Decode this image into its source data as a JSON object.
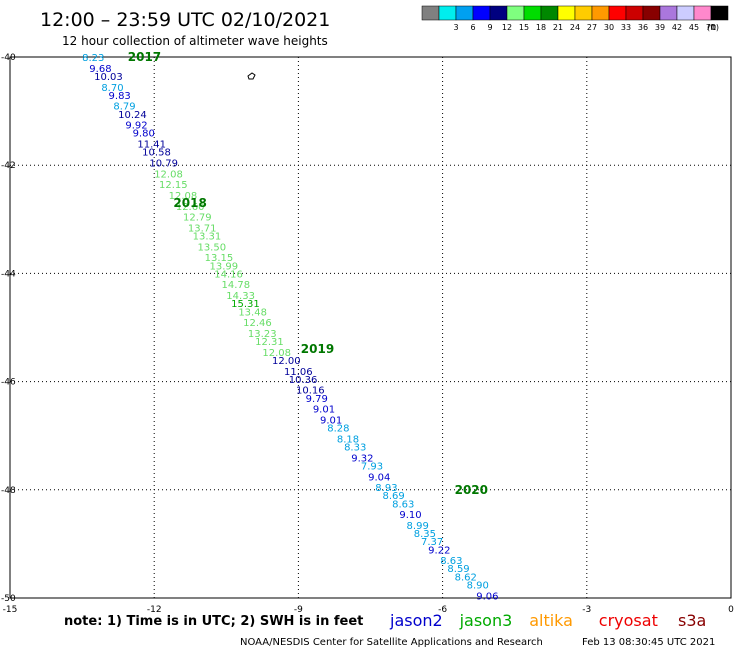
{
  "header": {
    "title": "12:00 – 23:59 UTC 02/10/2021",
    "subtitle": "12 hour collection of altimeter wave heights"
  },
  "legend": {
    "swatches": [
      {
        "color": "#808080",
        "label": ""
      },
      {
        "color": "#00eeee",
        "label": "3"
      },
      {
        "color": "#00a0f0",
        "label": "6"
      },
      {
        "color": "#0000ff",
        "label": "9"
      },
      {
        "color": "#000080",
        "label": "12"
      },
      {
        "color": "#7fff7f",
        "label": "15"
      },
      {
        "color": "#00dd00",
        "label": "18"
      },
      {
        "color": "#008800",
        "label": "21"
      },
      {
        "color": "#ffff00",
        "label": "24"
      },
      {
        "color": "#ffcc00",
        "label": "27"
      },
      {
        "color": "#ff9900",
        "label": "30"
      },
      {
        "color": "#ff0000",
        "label": "33"
      },
      {
        "color": "#cc0000",
        "label": "36"
      },
      {
        "color": "#880000",
        "label": "39"
      },
      {
        "color": "#aa77dd",
        "label": "42"
      },
      {
        "color": "#ccccff",
        "label": "45"
      },
      {
        "color": "#ff88cc",
        "label": "70"
      },
      {
        "color": "#000000",
        "label": ""
      }
    ],
    "unit_label": "(ft)"
  },
  "map": {
    "lon_labels": [
      "-15",
      "-12",
      "-9",
      "-6",
      "-3",
      "0"
    ],
    "lat_labels": [
      "-40",
      "-42",
      "-44",
      "-46",
      "-48",
      "-50"
    ],
    "time_marks": [
      {
        "label": "2017",
        "lon": -12.55,
        "lat": -40.0
      },
      {
        "label": "2018",
        "lon": -11.6,
        "lat": -42.7
      },
      {
        "label": "2019",
        "lon": -8.95,
        "lat": -45.4
      },
      {
        "label": "2020",
        "lon": -5.75,
        "lat": -48.0
      }
    ],
    "observations": [
      {
        "value": "8.23",
        "lon": -13.5,
        "lat": -40.0,
        "color": "#00a0e0"
      },
      {
        "value": "9.68",
        "lon": -13.35,
        "lat": -40.2,
        "color": "#0000cc"
      },
      {
        "value": "10.03",
        "lon": -13.25,
        "lat": -40.35,
        "color": "#000099"
      },
      {
        "value": "8.70",
        "lon": -13.1,
        "lat": -40.55,
        "color": "#00a0e0"
      },
      {
        "value": "9.83",
        "lon": -12.95,
        "lat": -40.7,
        "color": "#0000cc"
      },
      {
        "value": "8.79",
        "lon": -12.85,
        "lat": -40.9,
        "color": "#00a0e0"
      },
      {
        "value": "10.24",
        "lon": -12.75,
        "lat": -41.05,
        "color": "#000099"
      },
      {
        "value": "9.92",
        "lon": -12.6,
        "lat": -41.25,
        "color": "#0000cc"
      },
      {
        "value": "9.80",
        "lon": -12.45,
        "lat": -41.4,
        "color": "#0000cc"
      },
      {
        "value": "11.41",
        "lon": -12.35,
        "lat": -41.6,
        "color": "#000099"
      },
      {
        "value": "10.58",
        "lon": -12.25,
        "lat": -41.75,
        "color": "#000099"
      },
      {
        "value": "10.79",
        "lon": -12.1,
        "lat": -41.95,
        "color": "#000099"
      },
      {
        "value": "12.08",
        "lon": -12.0,
        "lat": -42.15,
        "color": "#66dd66"
      },
      {
        "value": "12.15",
        "lon": -11.9,
        "lat": -42.35,
        "color": "#66dd66"
      },
      {
        "value": "12.08",
        "lon": -11.7,
        "lat": -42.55,
        "color": "#66dd66"
      },
      {
        "value": "12.60",
        "lon": -11.55,
        "lat": -42.75,
        "color": "#66dd66"
      },
      {
        "value": "12.79",
        "lon": -11.4,
        "lat": -42.95,
        "color": "#66dd66"
      },
      {
        "value": "13.71",
        "lon": -11.3,
        "lat": -43.15,
        "color": "#66dd66"
      },
      {
        "value": "13.31",
        "lon": -11.2,
        "lat": -43.3,
        "color": "#66dd66"
      },
      {
        "value": "13.50",
        "lon": -11.1,
        "lat": -43.5,
        "color": "#66dd66"
      },
      {
        "value": "13.15",
        "lon": -10.95,
        "lat": -43.7,
        "color": "#66dd66"
      },
      {
        "value": "13.99",
        "lon": -10.85,
        "lat": -43.85,
        "color": "#66dd66"
      },
      {
        "value": "14.16",
        "lon": -10.75,
        "lat": -44.0,
        "color": "#66dd66"
      },
      {
        "value": "14.78",
        "lon": -10.6,
        "lat": -44.2,
        "color": "#66dd66"
      },
      {
        "value": "14.33",
        "lon": -10.5,
        "lat": -44.4,
        "color": "#66dd66"
      },
      {
        "value": "15.31",
        "lon": -10.4,
        "lat": -44.55,
        "color": "#00aa00"
      },
      {
        "value": "13.48",
        "lon": -10.25,
        "lat": -44.7,
        "color": "#66dd66"
      },
      {
        "value": "12.46",
        "lon": -10.15,
        "lat": -44.9,
        "color": "#66dd66"
      },
      {
        "value": "13.23",
        "lon": -10.05,
        "lat": -45.1,
        "color": "#66dd66"
      },
      {
        "value": "12.31",
        "lon": -9.9,
        "lat": -45.25,
        "color": "#66dd66"
      },
      {
        "value": "12.08",
        "lon": -9.75,
        "lat": -45.45,
        "color": "#66dd66"
      },
      {
        "value": "12.00",
        "lon": -9.55,
        "lat": -45.6,
        "color": "#000099"
      },
      {
        "value": "11.06",
        "lon": -9.3,
        "lat": -45.8,
        "color": "#000099"
      },
      {
        "value": "10.36",
        "lon": -9.2,
        "lat": -45.95,
        "color": "#000099"
      },
      {
        "value": "10.16",
        "lon": -9.05,
        "lat": -46.15,
        "color": "#000099"
      },
      {
        "value": "9.79",
        "lon": -8.85,
        "lat": -46.3,
        "color": "#0000cc"
      },
      {
        "value": "9.01",
        "lon": -8.7,
        "lat": -46.5,
        "color": "#0000cc"
      },
      {
        "value": "9.01",
        "lon": -8.55,
        "lat": -46.7,
        "color": "#0000cc"
      },
      {
        "value": "8.28",
        "lon": -8.4,
        "lat": -46.85,
        "color": "#00a0e0"
      },
      {
        "value": "8.18",
        "lon": -8.2,
        "lat": -47.05,
        "color": "#00a0e0"
      },
      {
        "value": "8.33",
        "lon": -8.05,
        "lat": -47.2,
        "color": "#00a0e0"
      },
      {
        "value": "9.32",
        "lon": -7.9,
        "lat": -47.4,
        "color": "#0000cc"
      },
      {
        "value": "7.93",
        "lon": -7.7,
        "lat": -47.55,
        "color": "#00a0e0"
      },
      {
        "value": "9.04",
        "lon": -7.55,
        "lat": -47.75,
        "color": "#0000cc"
      },
      {
        "value": "8.93",
        "lon": -7.4,
        "lat": -47.95,
        "color": "#00a0e0"
      },
      {
        "value": "8.69",
        "lon": -7.25,
        "lat": -48.1,
        "color": "#00a0e0"
      },
      {
        "value": "8.63",
        "lon": -7.05,
        "lat": -48.25,
        "color": "#00a0e0"
      },
      {
        "value": "9.10",
        "lon": -6.9,
        "lat": -48.45,
        "color": "#0000cc"
      },
      {
        "value": "8.99",
        "lon": -6.75,
        "lat": -48.65,
        "color": "#00a0e0"
      },
      {
        "value": "8.35",
        "lon": -6.6,
        "lat": -48.8,
        "color": "#00a0e0"
      },
      {
        "value": "7.37",
        "lon": -6.45,
        "lat": -48.95,
        "color": "#00a0e0"
      },
      {
        "value": "9.22",
        "lon": -6.3,
        "lat": -49.1,
        "color": "#0000cc"
      },
      {
        "value": "8.63",
        "lon": -6.05,
        "lat": -49.3,
        "color": "#00a0e0"
      },
      {
        "value": "8.59",
        "lon": -5.9,
        "lat": -49.45,
        "color": "#00a0e0"
      },
      {
        "value": "8.62",
        "lon": -5.75,
        "lat": -49.6,
        "color": "#00a0e0"
      },
      {
        "value": "8.90",
        "lon": -5.5,
        "lat": -49.75,
        "color": "#00a0e0"
      },
      {
        "value": "9.06",
        "lon": -5.3,
        "lat": -49.95,
        "color": "#0000cc"
      }
    ]
  },
  "footer": {
    "note": "note:  1) Time is in UTC;  2) SWH is in feet",
    "satellites": [
      {
        "name": "jason2",
        "color": "#0000cc"
      },
      {
        "name": "jason3",
        "color": "#00aa00"
      },
      {
        "name": "altika",
        "color": "#ff9900"
      },
      {
        "name": "cryosat",
        "color": "#ee0000"
      },
      {
        "name": "s3a",
        "color": "#880000"
      }
    ],
    "credit": "NOAA/NESDIS Center for Satellite Applications and Research",
    "timestamp": "Feb 13 08:30:45 UTC 2021"
  }
}
